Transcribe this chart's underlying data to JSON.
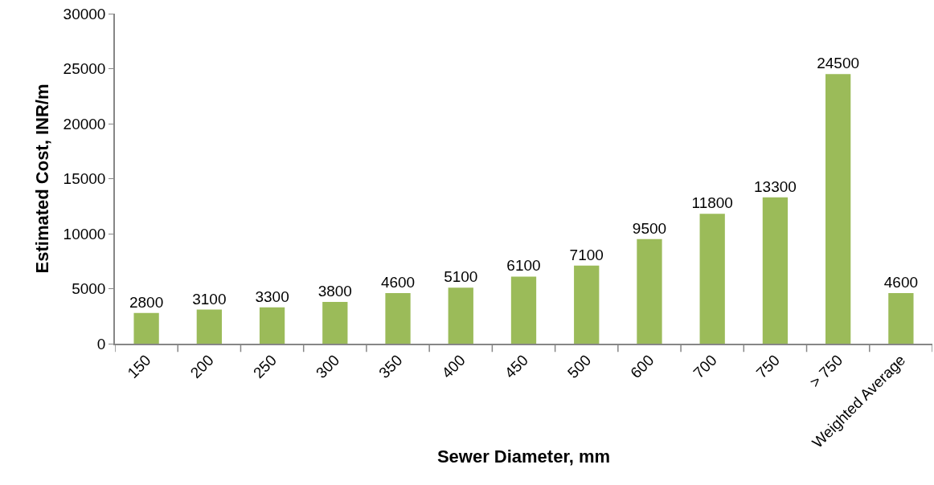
{
  "chart_data": {
    "type": "bar",
    "xlabel": "Sewer Diameter, mm",
    "ylabel": "Estimated Cost, INR/m",
    "categories": [
      "150",
      "200",
      "250",
      "300",
      "350",
      "400",
      "450",
      "500",
      "600",
      "700",
      "750",
      "> 750",
      "Weighted Average"
    ],
    "values": [
      2800,
      3100,
      3300,
      3800,
      4600,
      5100,
      6100,
      7100,
      9500,
      11800,
      13300,
      24500,
      4600
    ],
    "color": "#9bbb59",
    "ylim": [
      0,
      30000
    ],
    "yticks": [
      0,
      5000,
      10000,
      15000,
      20000,
      25000,
      30000
    ],
    "data_labels": true
  }
}
